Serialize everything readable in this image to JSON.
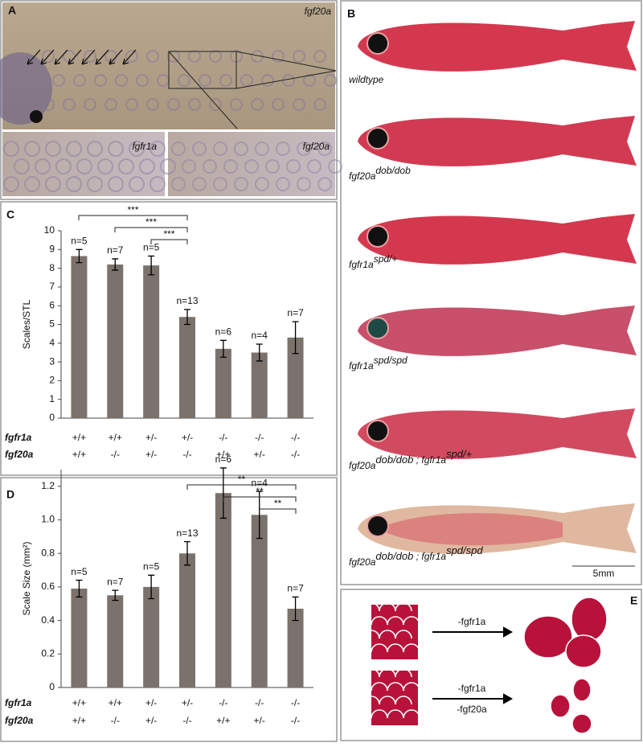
{
  "panels": {
    "a": {
      "label": "A",
      "main": "fgf20a",
      "insets": [
        "fgfr1a",
        "fgf20a"
      ]
    },
    "b": {
      "label": "B",
      "fish": [
        [
          {
            "text": "wildtype"
          }
        ],
        [
          {
            "text": "fgf20a",
            "sup": "dob/dob"
          }
        ],
        [
          {
            "text": "fgfr1a",
            "sup": "spd/+"
          }
        ],
        [
          {
            "text": "fgfr1a",
            "sup": "spd/spd"
          }
        ],
        [
          {
            "text": "fgf20a",
            "sup": "dob/dob"
          },
          {
            "text": " ; fgfr1a",
            "sup": "spd/+"
          }
        ],
        [
          {
            "text": "fgf20a",
            "sup": "dob/dob"
          },
          {
            "text": " ; fgfr1a",
            "sup": "spd/spd"
          }
        ]
      ],
      "scale_bar": "5mm"
    },
    "e": {
      "label": "E",
      "top_arrow": "-fgfr1a",
      "bottom_arrow": [
        "-fgfr1a",
        "-fgf20a"
      ]
    }
  },
  "chart_data": [
    {
      "type": "bar",
      "panel": "C",
      "y_label": "Scales/STL",
      "color": "#7b736b",
      "values": [
        8.65,
        8.2,
        8.15,
        5.4,
        3.7,
        3.5,
        4.3
      ],
      "errors": [
        0.35,
        0.3,
        0.5,
        0.4,
        0.45,
        0.45,
        0.85
      ],
      "annotations": [
        "n=5",
        "n=7",
        "n=5",
        "n=13",
        "n=6",
        "n=4",
        "n=7"
      ],
      "label_rows": [
        {
          "name": "fgfr1a",
          "labels": [
            "+/+",
            "+/+",
            "+/-",
            "+/-",
            "-/-",
            "-/-",
            "-/-"
          ]
        },
        {
          "name": "fgf20a",
          "labels": [
            "+/+",
            "-/-",
            "+/-",
            "-/-",
            "+/+",
            "+/-",
            "-/-"
          ]
        }
      ],
      "significance": [
        "***",
        "***",
        "***"
      ],
      "ylim": [
        0,
        10
      ],
      "yticks": [
        0,
        1,
        2,
        3,
        4,
        5,
        6,
        7,
        8,
        9,
        10
      ]
    },
    {
      "type": "bar",
      "panel": "D",
      "y_label": "Scale Size (mm²)",
      "color": "#7b736b",
      "values": [
        0.59,
        0.55,
        0.6,
        0.8,
        1.16,
        1.03,
        0.47
      ],
      "errors": [
        0.05,
        0.03,
        0.07,
        0.07,
        0.15,
        0.14,
        0.07
      ],
      "annotations": [
        "n=5",
        "n=7",
        "n=5",
        "n=13",
        "n=6",
        "n=4",
        "n=7"
      ],
      "label_rows": [
        {
          "name": "fgfr1a",
          "labels": [
            "+/+",
            "+/+",
            "+/-",
            "+/-",
            "-/-",
            "-/-",
            "-/-"
          ]
        },
        {
          "name": "fgf20a",
          "labels": [
            "+/+",
            "-/-",
            "+/-",
            "-/-",
            "+/+",
            "+/-",
            "-/-"
          ]
        }
      ],
      "significance": [
        "**",
        "**",
        "**"
      ],
      "ylim": [
        0,
        1.3
      ],
      "yticks": [
        0,
        {
          "value": 0.2,
          "label": "0.2"
        },
        {
          "value": 0.4,
          "label": "0.4"
        },
        {
          "value": 0.6,
          "label": "0.6"
        },
        {
          "value": 0.8,
          "label": "0.8"
        },
        {
          "value": 1,
          "label": "1.0"
        },
        {
          "value": 1.2,
          "label": "1.2"
        }
      ]
    }
  ]
}
